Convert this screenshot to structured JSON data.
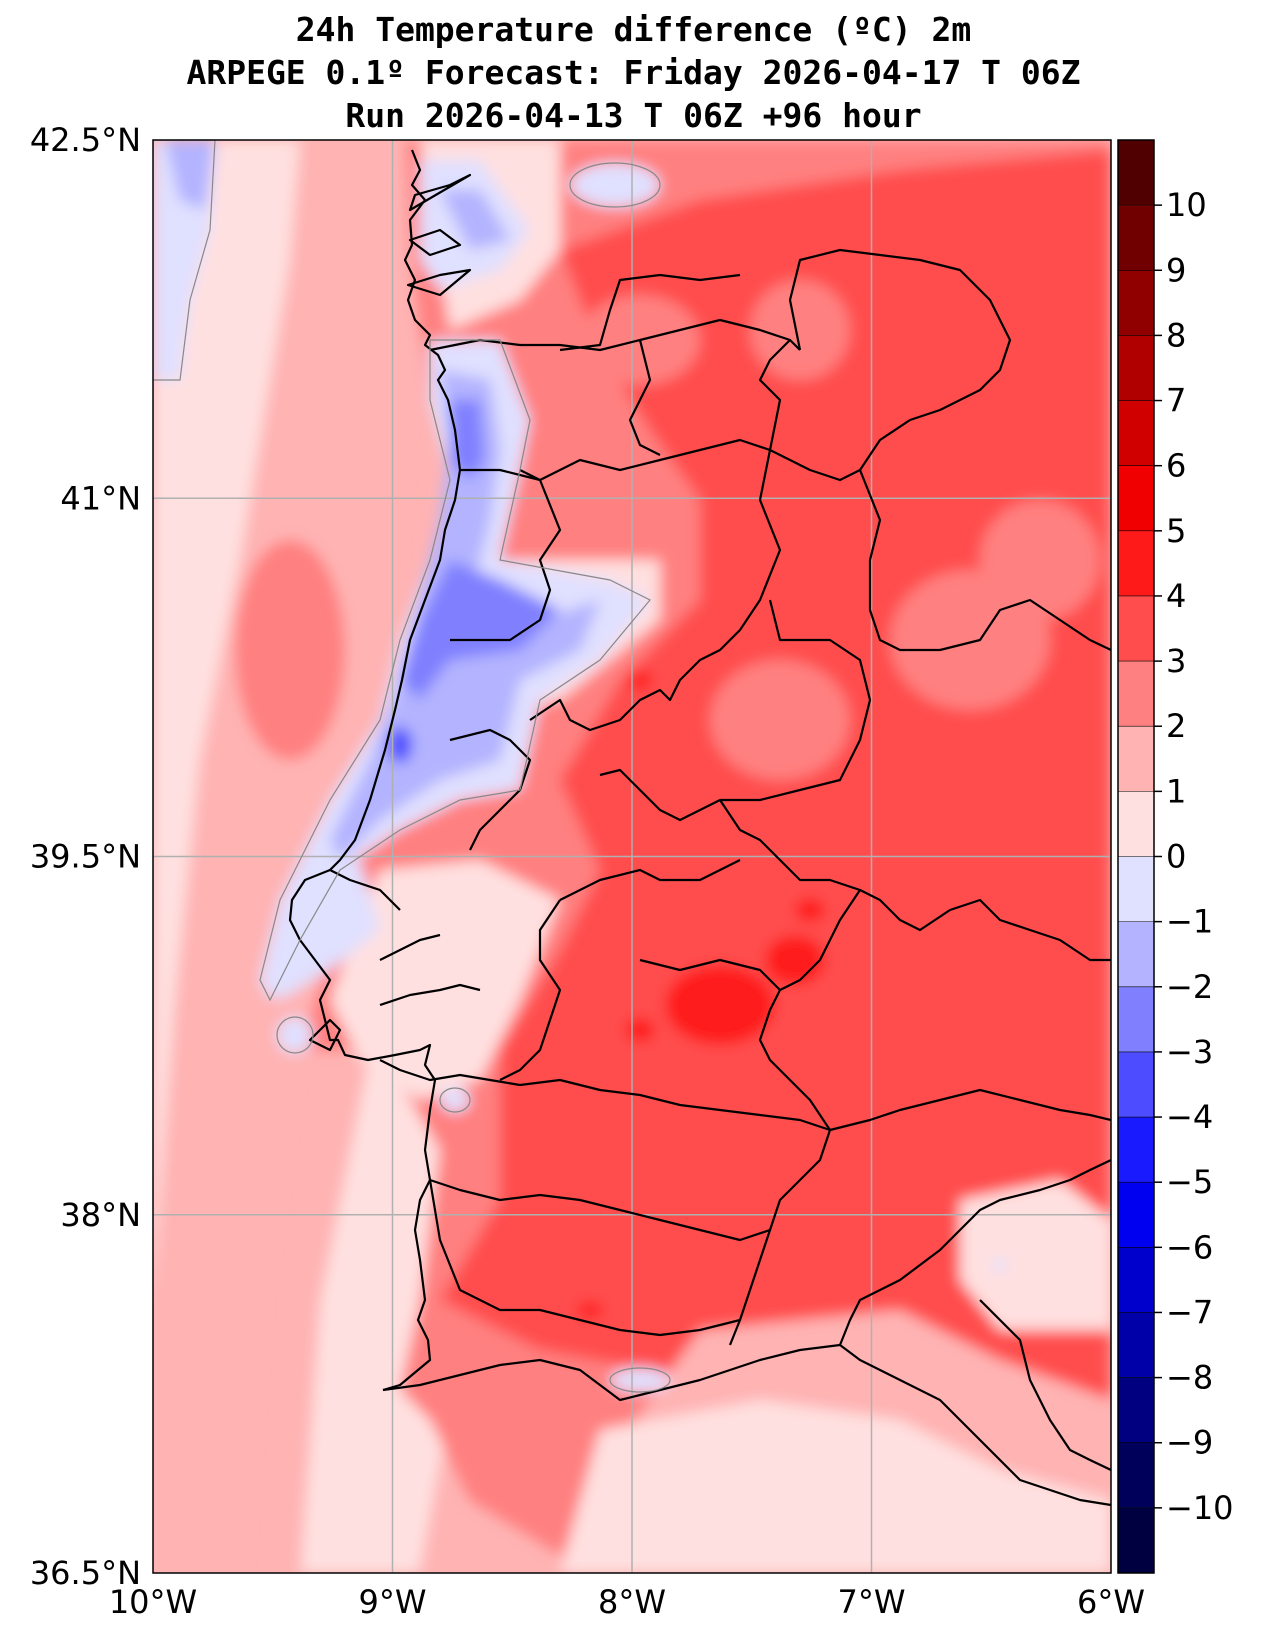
{
  "title": {
    "line1": "24h Temperature difference (ºC) 2m",
    "line2": "ARPEGE 0.1º Forecast: Friday 2026-04-17 T 06Z",
    "line3": "Run 2026-04-13 T 06Z +96 hour"
  },
  "map": {
    "region": "Portugal",
    "lon_range": [
      -10,
      -6
    ],
    "lat_range": [
      36.5,
      42.5
    ],
    "lon_ticks": [
      {
        "value": -10,
        "label": "10°W"
      },
      {
        "value": -9,
        "label": "9°W"
      },
      {
        "value": -8,
        "label": "8°W"
      },
      {
        "value": -7,
        "label": "7°W"
      },
      {
        "value": -6,
        "label": "6°W"
      }
    ],
    "lat_ticks": [
      {
        "value": 42.5,
        "label": "42.5°N"
      },
      {
        "value": 41,
        "label": "41°N"
      },
      {
        "value": 39.5,
        "label": "39.5°N"
      },
      {
        "value": 38,
        "label": "38°N"
      },
      {
        "value": 36.5,
        "label": "36.5°N"
      }
    ]
  },
  "colorbar": {
    "levels": [
      -11,
      -10,
      -9,
      -8,
      -7,
      -6,
      -5,
      -4,
      -3,
      -2,
      -1,
      0,
      1,
      2,
      3,
      4,
      5,
      6,
      7,
      8,
      9,
      10,
      11
    ],
    "tick_labels": [
      "−10",
      "−9",
      "−8",
      "−7",
      "−6",
      "−5",
      "−4",
      "−3",
      "−2",
      "−1",
      "0",
      "1",
      "2",
      "3",
      "4",
      "5",
      "6",
      "7",
      "8",
      "9",
      "10"
    ],
    "colors": [
      "#000040",
      "#00005a",
      "#000080",
      "#0000a8",
      "#0000cc",
      "#0000f0",
      "#1a1aff",
      "#4d4dff",
      "#8080ff",
      "#b3b3ff",
      "#e0e0ff",
      "#ffe0e0",
      "#ffb3b3",
      "#ff8080",
      "#ff4d4d",
      "#ff1a1a",
      "#f00000",
      "#d00000",
      "#b00000",
      "#900000",
      "#700000",
      "#500000"
    ]
  },
  "colors": {
    "grid": "#b0b0b0",
    "coast": "#000000",
    "contour": "#888888"
  }
}
